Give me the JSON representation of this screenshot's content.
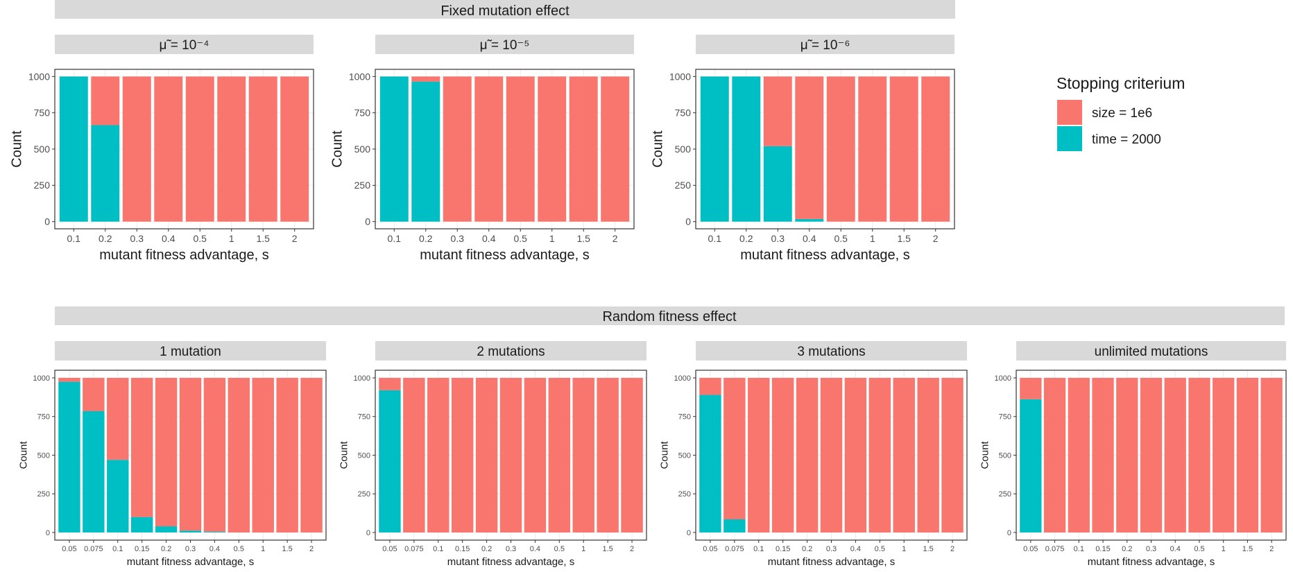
{
  "figure": {
    "top_group_title": "Fixed mutation effect",
    "bottom_group_title": "Random fitness effect"
  },
  "legend": {
    "title": "Stopping criterium",
    "items": [
      {
        "label": "size = 1e6",
        "color": "#F8766D"
      },
      {
        "label": "time = 2000",
        "color": "#00BFC4"
      }
    ]
  },
  "chart_data": [
    {
      "type": "bar",
      "stacked": true,
      "title": "μ̃ = 10⁻⁴",
      "xlabel": "mutant fitness advantage, s",
      "ylabel": "Count",
      "categories": [
        "0.1",
        "0.2",
        "0.3",
        "0.4",
        "0.5",
        "1",
        "1.5",
        "2"
      ],
      "ylim": [
        0,
        1000
      ],
      "yticks": [
        0,
        250,
        500,
        750,
        1000
      ],
      "series": [
        {
          "name": "time = 2000",
          "color": "#00BFC4",
          "values": [
            1000,
            665,
            0,
            0,
            0,
            0,
            0,
            0
          ]
        },
        {
          "name": "size = 1e6",
          "color": "#F8766D",
          "values": [
            0,
            335,
            1000,
            1000,
            1000,
            1000,
            1000,
            1000
          ]
        }
      ]
    },
    {
      "type": "bar",
      "stacked": true,
      "title": "μ̃ = 10⁻⁵",
      "xlabel": "mutant fitness advantage, s",
      "ylabel": "Count",
      "categories": [
        "0.1",
        "0.2",
        "0.3",
        "0.4",
        "0.5",
        "1",
        "1.5",
        "2"
      ],
      "ylim": [
        0,
        1000
      ],
      "yticks": [
        0,
        250,
        500,
        750,
        1000
      ],
      "series": [
        {
          "name": "time = 2000",
          "color": "#00BFC4",
          "values": [
            1000,
            965,
            0,
            0,
            0,
            0,
            0,
            0
          ]
        },
        {
          "name": "size = 1e6",
          "color": "#F8766D",
          "values": [
            0,
            35,
            1000,
            1000,
            1000,
            1000,
            1000,
            1000
          ]
        }
      ]
    },
    {
      "type": "bar",
      "stacked": true,
      "title": "μ̃ = 10⁻⁶",
      "xlabel": "mutant fitness advantage, s",
      "ylabel": "Count",
      "categories": [
        "0.1",
        "0.2",
        "0.3",
        "0.4",
        "0.5",
        "1",
        "1.5",
        "2"
      ],
      "ylim": [
        0,
        1000
      ],
      "yticks": [
        0,
        250,
        500,
        750,
        1000
      ],
      "series": [
        {
          "name": "time = 2000",
          "color": "#00BFC4",
          "values": [
            1000,
            1000,
            520,
            18,
            0,
            0,
            0,
            0
          ]
        },
        {
          "name": "size = 1e6",
          "color": "#F8766D",
          "values": [
            0,
            0,
            480,
            982,
            1000,
            1000,
            1000,
            1000
          ]
        }
      ]
    },
    {
      "type": "bar",
      "stacked": true,
      "title": "1 mutation",
      "xlabel": "mutant fitness advantage, s",
      "ylabel": "Count",
      "categories": [
        "0.05",
        "0.075",
        "0.1",
        "0.15",
        "0.2",
        "0.3",
        "0.4",
        "0.5",
        "1",
        "1.5",
        "2"
      ],
      "ylim": [
        0,
        1000
      ],
      "yticks": [
        0,
        250,
        500,
        750,
        1000
      ],
      "series": [
        {
          "name": "time = 2000",
          "color": "#00BFC4",
          "values": [
            975,
            785,
            470,
            100,
            40,
            12,
            5,
            0,
            0,
            0,
            0
          ]
        },
        {
          "name": "size = 1e6",
          "color": "#F8766D",
          "values": [
            25,
            215,
            530,
            900,
            960,
            988,
            995,
            1000,
            1000,
            1000,
            1000
          ]
        }
      ]
    },
    {
      "type": "bar",
      "stacked": true,
      "title": "2 mutations",
      "xlabel": "mutant fitness advantage, s",
      "ylabel": "Count",
      "categories": [
        "0.05",
        "0.075",
        "0.1",
        "0.15",
        "0.2",
        "0.3",
        "0.4",
        "0.5",
        "1",
        "1.5",
        "2"
      ],
      "ylim": [
        0,
        1000
      ],
      "yticks": [
        0,
        250,
        500,
        750,
        1000
      ],
      "series": [
        {
          "name": "time = 2000",
          "color": "#00BFC4",
          "values": [
            920,
            0,
            0,
            0,
            0,
            0,
            0,
            0,
            0,
            0,
            0
          ]
        },
        {
          "name": "size = 1e6",
          "color": "#F8766D",
          "values": [
            80,
            1000,
            1000,
            1000,
            1000,
            1000,
            1000,
            1000,
            1000,
            1000,
            1000
          ]
        }
      ]
    },
    {
      "type": "bar",
      "stacked": true,
      "title": "3 mutations",
      "xlabel": "mutant fitness advantage, s",
      "ylabel": "Count",
      "categories": [
        "0.05",
        "0.075",
        "0.1",
        "0.15",
        "0.2",
        "0.3",
        "0.4",
        "0.5",
        "1",
        "1.5",
        "2"
      ],
      "ylim": [
        0,
        1000
      ],
      "yticks": [
        0,
        250,
        500,
        750,
        1000
      ],
      "series": [
        {
          "name": "time = 2000",
          "color": "#00BFC4",
          "values": [
            890,
            85,
            0,
            0,
            0,
            0,
            0,
            0,
            0,
            0,
            0
          ]
        },
        {
          "name": "size = 1e6",
          "color": "#F8766D",
          "values": [
            110,
            915,
            1000,
            1000,
            1000,
            1000,
            1000,
            1000,
            1000,
            1000,
            1000
          ]
        }
      ]
    },
    {
      "type": "bar",
      "stacked": true,
      "title": "unlimited mutations",
      "xlabel": "mutant fitness advantage, s",
      "ylabel": "Count",
      "categories": [
        "0.05",
        "0.075",
        "0.1",
        "0.15",
        "0.2",
        "0.3",
        "0.4",
        "0.5",
        "1",
        "1.5",
        "2"
      ],
      "ylim": [
        0,
        1000
      ],
      "yticks": [
        0,
        250,
        500,
        750,
        1000
      ],
      "series": [
        {
          "name": "time = 2000",
          "color": "#00BFC4",
          "values": [
            862,
            0,
            0,
            0,
            0,
            0,
            0,
            0,
            0,
            0,
            0
          ]
        },
        {
          "name": "size = 1e6",
          "color": "#F8766D",
          "values": [
            138,
            1000,
            1000,
            1000,
            1000,
            1000,
            1000,
            1000,
            1000,
            1000,
            1000
          ]
        }
      ]
    }
  ]
}
